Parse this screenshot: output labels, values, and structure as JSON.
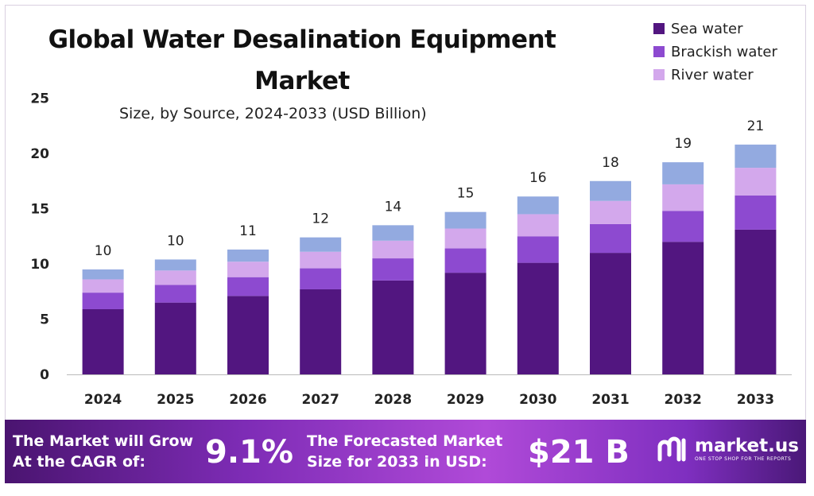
{
  "title": "Global Water Desalination Equipment Market",
  "subtitle": "Size, by Source, 2024-2033 (USD Billion)",
  "colors": {
    "sea_water": "#521680",
    "brackish_water": "#8d4ad0",
    "river_water": "#d3a8ec",
    "top_segment": "#93aae0",
    "axis": "#bbbbbb"
  },
  "chart_data": {
    "type": "bar",
    "stacked": true,
    "title": "Global Water Desalination Equipment Market",
    "subtitle": "Size, by Source, 2024-2033 (USD Billion)",
    "categories": [
      "2024",
      "2025",
      "2026",
      "2027",
      "2028",
      "2029",
      "2030",
      "2031",
      "2032",
      "2033"
    ],
    "series": [
      {
        "name": "Sea water",
        "color": "#521680",
        "values": [
          5.9,
          6.5,
          7.1,
          7.7,
          8.5,
          9.2,
          10.1,
          11.0,
          12.0,
          13.1
        ]
      },
      {
        "name": "Brackish water",
        "color": "#8d4ad0",
        "values": [
          1.5,
          1.6,
          1.7,
          1.9,
          2.0,
          2.2,
          2.4,
          2.6,
          2.8,
          3.1
        ]
      },
      {
        "name": "River water",
        "color": "#d3a8ec",
        "values": [
          1.2,
          1.3,
          1.4,
          1.5,
          1.6,
          1.8,
          2.0,
          2.1,
          2.4,
          2.5
        ]
      },
      {
        "name": "",
        "color": "#93aae0",
        "values": [
          0.9,
          1.0,
          1.1,
          1.3,
          1.4,
          1.5,
          1.6,
          1.8,
          2.0,
          2.1
        ]
      }
    ],
    "totals": [
      "10",
      "10",
      "11",
      "12",
      "14",
      "15",
      "16",
      "18",
      "19",
      "21"
    ],
    "y_ticks": [
      "0",
      "5",
      "10",
      "15",
      "20",
      "25"
    ],
    "ylim": [
      0,
      25
    ],
    "xlabel": "",
    "ylabel": "",
    "grid": false,
    "legend_position": "top-right"
  },
  "legend": [
    {
      "label": "Sea water",
      "color": "#521680"
    },
    {
      "label": "Brackish water",
      "color": "#8d4ad0"
    },
    {
      "label": "River water",
      "color": "#d3a8ec"
    }
  ],
  "banner": {
    "cagr_label_line1": "The Market will Grow",
    "cagr_label_line2": "At the CAGR of:",
    "cagr_value": "9.1%",
    "forecast_label_line1": "The Forecasted Market",
    "forecast_label_line2": "Size for 2033 in USD:",
    "forecast_value": "$21 B"
  },
  "logo": {
    "name": "market.us",
    "tagline": "ONE STOP SHOP FOR THE REPORTS"
  }
}
